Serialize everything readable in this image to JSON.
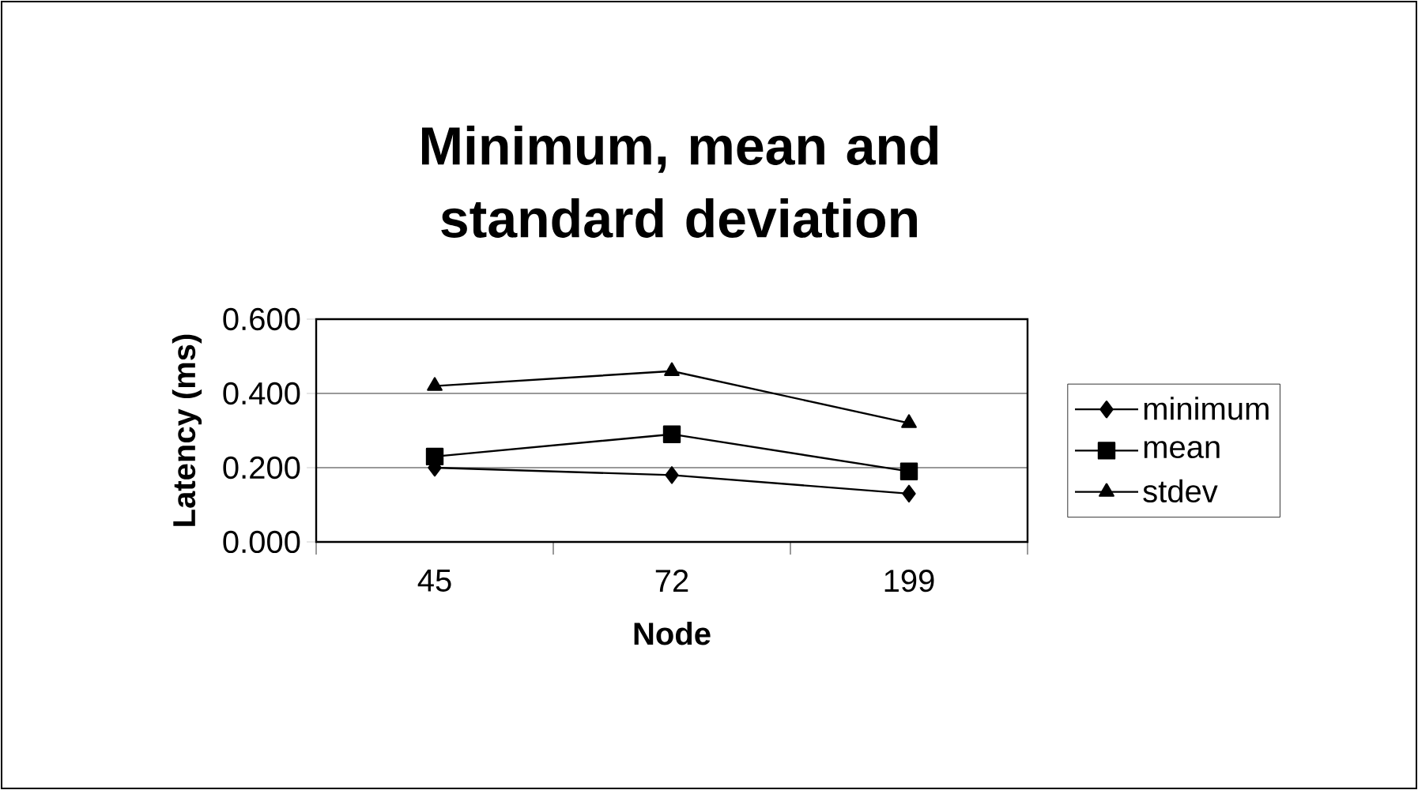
{
  "chart_data": {
    "type": "line",
    "title": "Minimum, mean and standard deviation",
    "xlabel": "Node",
    "ylabel": "Latency (ms)",
    "categories": [
      "45",
      "72",
      "199"
    ],
    "series": [
      {
        "name": "minimum",
        "color": "#000000",
        "marker": "diamond",
        "values": [
          0.2,
          0.18,
          0.13
        ]
      },
      {
        "name": "mean",
        "color": "#000000",
        "marker": "square",
        "values": [
          0.23,
          0.29,
          0.19
        ]
      },
      {
        "name": "stdev",
        "color": "#000000",
        "marker": "triangle",
        "values": [
          0.42,
          0.46,
          0.32
        ]
      }
    ],
    "ylim": [
      0,
      0.6
    ],
    "yticks": [
      {
        "value": 0,
        "label": "0.000"
      },
      {
        "value": 0.2,
        "label": "0.200"
      },
      {
        "value": 0.4,
        "label": "0.400"
      },
      {
        "value": 0.6,
        "label": "0.600"
      }
    ],
    "grid": "y",
    "legend": "right",
    "line_style": "solid"
  }
}
